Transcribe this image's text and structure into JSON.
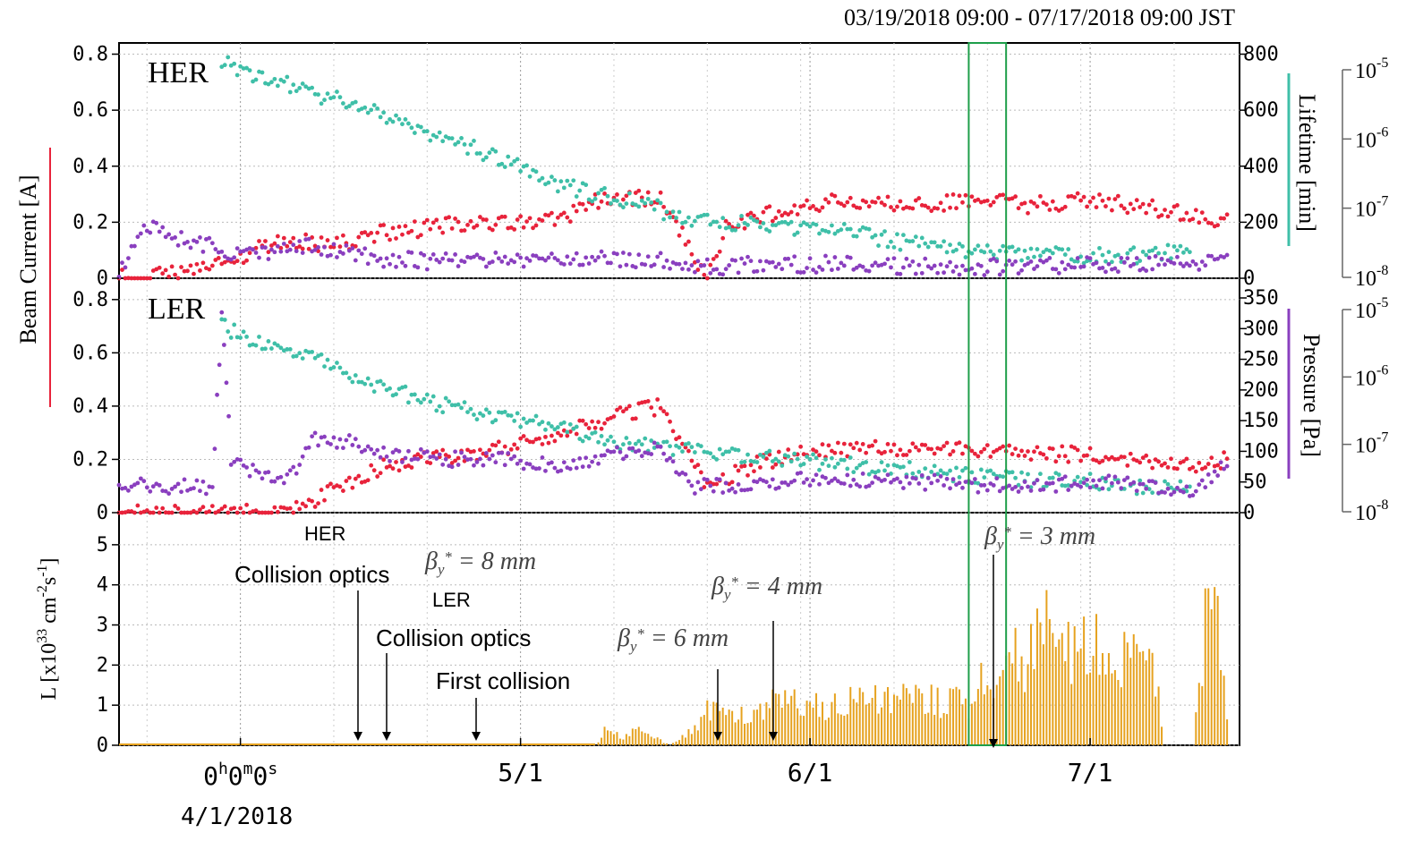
{
  "chart_data": {
    "type": "scatter",
    "date_range": "03/19/2018 09:00 - 07/17/2018 09:00 JST",
    "x_ticks": [
      "0h0m0s",
      "5/1",
      "6/1",
      "7/1"
    ],
    "x_tick_days": [
      0,
      30,
      61,
      91
    ],
    "x_tick_sub": "4/1/2018",
    "x_range_days": [
      -13,
      107
    ],
    "colors": {
      "her": "#e8233b",
      "ler": "#8a3fbf",
      "lifetime": "#3fbfa8",
      "lum": "#e6a21f",
      "green": "#1e9e4a"
    },
    "panels": {
      "her": {
        "label": "HER",
        "beam_current_ticks": [
          "0",
          "0.2",
          "0.4",
          "0.6",
          "0.8"
        ],
        "lifetime_ticks": [
          "0",
          "200",
          "400",
          "600",
          "800"
        ],
        "lifetime_label": "Lifetime [min]",
        "pressure_ticks": [
          "10-8",
          "10-7",
          "10-6",
          "10-5"
        ],
        "series": [
          {
            "name": "Beam Current",
            "color": "#e8233b",
            "points": [
              [
                -13,
                0.0
              ],
              [
                -5,
                0.02
              ],
              [
                0,
                0.08
              ],
              [
                5,
                0.14
              ],
              [
                10,
                0.12
              ],
              [
                15,
                0.16
              ],
              [
                20,
                0.18
              ],
              [
                25,
                0.2
              ],
              [
                30,
                0.2
              ],
              [
                35,
                0.22
              ],
              [
                38,
                0.28
              ],
              [
                45,
                0.29
              ],
              [
                50,
                0.0
              ],
              [
                52,
                0.18
              ],
              [
                56,
                0.22
              ],
              [
                60,
                0.26
              ],
              [
                66,
                0.28
              ],
              [
                72,
                0.26
              ],
              [
                78,
                0.28
              ],
              [
                85,
                0.26
              ],
              [
                90,
                0.28
              ],
              [
                95,
                0.26
              ],
              [
                100,
                0.24
              ],
              [
                104,
                0.2
              ],
              [
                106,
                0.22
              ]
            ]
          },
          {
            "name": "Lifetime",
            "color": "#3fbfa8",
            "points": [
              [
                -2,
                0.78
              ],
              [
                2,
                0.72
              ],
              [
                8,
                0.66
              ],
              [
                12,
                0.62
              ],
              [
                18,
                0.55
              ],
              [
                22,
                0.5
              ],
              [
                27,
                0.44
              ],
              [
                32,
                0.36
              ],
              [
                38,
                0.3
              ],
              [
                44,
                0.26
              ],
              [
                48,
                0.2
              ],
              [
                55,
                0.2
              ],
              [
                60,
                0.18
              ],
              [
                66,
                0.16
              ],
              [
                72,
                0.12
              ],
              [
                78,
                0.1
              ],
              [
                85,
                0.09
              ],
              [
                90,
                0.08
              ],
              [
                96,
                0.08
              ],
              [
                102,
                0.1
              ]
            ]
          },
          {
            "name": "Pressure",
            "color": "#8a3fbf",
            "points": [
              [
                -13,
                0.01
              ],
              [
                -10,
                0.18
              ],
              [
                -6,
                0.14
              ],
              [
                -2,
                0.1
              ],
              [
                2,
                0.08
              ],
              [
                6,
                0.12
              ],
              [
                10,
                0.1
              ],
              [
                15,
                0.07
              ],
              [
                20,
                0.06
              ],
              [
                25,
                0.06
              ],
              [
                30,
                0.07
              ],
              [
                35,
                0.06
              ],
              [
                40,
                0.07
              ],
              [
                45,
                0.06
              ],
              [
                50,
                0.04
              ],
              [
                55,
                0.05
              ],
              [
                60,
                0.05
              ],
              [
                66,
                0.05
              ],
              [
                72,
                0.04
              ],
              [
                78,
                0.04
              ],
              [
                85,
                0.04
              ],
              [
                90,
                0.05
              ],
              [
                96,
                0.05
              ],
              [
                102,
                0.05
              ],
              [
                106,
                0.1
              ]
            ]
          }
        ]
      },
      "ler": {
        "label": "LER",
        "beam_current_ticks": [
          "0",
          "0.2",
          "0.4",
          "0.6",
          "0.8"
        ],
        "pressure_ticks": [
          "0",
          "50",
          "100",
          "150",
          "200",
          "250",
          "300",
          "350"
        ],
        "pressure_label": "Pressure [Pa]",
        "pressure_log_ticks": [
          "10-8",
          "10-7",
          "10-6",
          "10-5"
        ],
        "series": [
          {
            "name": "Beam Current",
            "color": "#e8233b",
            "points": [
              [
                -13,
                0.0
              ],
              [
                0,
                0.0
              ],
              [
                4,
                0.01
              ],
              [
                8,
                0.05
              ],
              [
                12,
                0.12
              ],
              [
                16,
                0.18
              ],
              [
                20,
                0.2
              ],
              [
                25,
                0.22
              ],
              [
                30,
                0.26
              ],
              [
                35,
                0.3
              ],
              [
                40,
                0.36
              ],
              [
                45,
                0.4
              ],
              [
                50,
                0.1
              ],
              [
                55,
                0.18
              ],
              [
                60,
                0.22
              ],
              [
                66,
                0.24
              ],
              [
                72,
                0.24
              ],
              [
                78,
                0.24
              ],
              [
                85,
                0.22
              ],
              [
                90,
                0.22
              ],
              [
                96,
                0.2
              ],
              [
                102,
                0.18
              ],
              [
                106,
                0.2
              ]
            ]
          },
          {
            "name": "Lifetime",
            "color": "#3fbfa8",
            "points": [
              [
                -2,
                0.7
              ],
              [
                3,
                0.62
              ],
              [
                8,
                0.6
              ],
              [
                12,
                0.5
              ],
              [
                18,
                0.44
              ],
              [
                22,
                0.4
              ],
              [
                28,
                0.36
              ],
              [
                34,
                0.32
              ],
              [
                40,
                0.26
              ],
              [
                46,
                0.24
              ],
              [
                52,
                0.22
              ],
              [
                58,
                0.2
              ],
              [
                64,
                0.18
              ],
              [
                72,
                0.16
              ],
              [
                78,
                0.14
              ],
              [
                85,
                0.12
              ],
              [
                90,
                0.12
              ],
              [
                96,
                0.1
              ],
              [
                102,
                0.1
              ]
            ]
          },
          {
            "name": "Pressure",
            "color": "#8a3fbf",
            "points": [
              [
                -13,
                0.1
              ],
              [
                -3,
                0.1
              ],
              [
                -2,
                0.74
              ],
              [
                -1,
                0.2
              ],
              [
                2,
                0.14
              ],
              [
                5,
                0.12
              ],
              [
                8,
                0.28
              ],
              [
                12,
                0.26
              ],
              [
                16,
                0.22
              ],
              [
                22,
                0.2
              ],
              [
                28,
                0.2
              ],
              [
                34,
                0.18
              ],
              [
                40,
                0.22
              ],
              [
                45,
                0.24
              ],
              [
                48,
                0.1
              ],
              [
                52,
                0.1
              ],
              [
                58,
                0.12
              ],
              [
                64,
                0.12
              ],
              [
                72,
                0.12
              ],
              [
                78,
                0.1
              ],
              [
                85,
                0.1
              ],
              [
                90,
                0.12
              ],
              [
                96,
                0.1
              ],
              [
                102,
                0.08
              ],
              [
                106,
                0.2
              ]
            ]
          }
        ]
      },
      "lum": {
        "ylabel": "L [x10^33 cm^-2 s^-1]",
        "yticks": [
          "0",
          "1",
          "2",
          "3",
          "4",
          "5"
        ],
        "ylim": [
          0,
          5.8
        ],
        "series": [
          {
            "name": "Luminosity",
            "color": "#e6a21f",
            "points": [
              [
                -13,
                0.0
              ],
              [
                38,
                0.0
              ],
              [
                39,
                0.35
              ],
              [
                41,
                0.2
              ],
              [
                43,
                0.4
              ],
              [
                46,
                0.0
              ],
              [
                48,
                0.3
              ],
              [
                50,
                0.85
              ],
              [
                52,
                0.8
              ],
              [
                55,
                0.9
              ],
              [
                58,
                1.1
              ],
              [
                62,
                1.0
              ],
              [
                66,
                1.05
              ],
              [
                70,
                1.1
              ],
              [
                75,
                1.1
              ],
              [
                78,
                1.0
              ],
              [
                80,
                1.8
              ],
              [
                82,
                2.0
              ],
              [
                84,
                2.2
              ],
              [
                86,
                2.8
              ],
              [
                88,
                2.6
              ],
              [
                90,
                2.4
              ],
              [
                92,
                2.6
              ],
              [
                94,
                2.2
              ],
              [
                96,
                2.0
              ],
              [
                98,
                1.8
              ],
              [
                99,
                0.0
              ],
              [
                102,
                0.0
              ],
              [
                104,
                4.3
              ],
              [
                106,
                0.0
              ]
            ]
          }
        ]
      }
    },
    "annotations": [
      {
        "text": "HER",
        "style": "sans"
      },
      {
        "text": "Collision optics",
        "style": "sans"
      },
      {
        "text": "βy* = 8 mm",
        "style": "serif"
      },
      {
        "text": "LER",
        "style": "sans"
      },
      {
        "text": "Collision optics",
        "style": "sans"
      },
      {
        "text": "First collision",
        "style": "sans"
      },
      {
        "text": "βy* = 6 mm",
        "style": "serif"
      },
      {
        "text": "βy* = 4 mm",
        "style": "serif"
      },
      {
        "text": "βy* = 3 mm",
        "style": "serif"
      }
    ],
    "beam_current_label": "Beam Current [A]",
    "green_box_days": [
      78,
      82
    ]
  }
}
